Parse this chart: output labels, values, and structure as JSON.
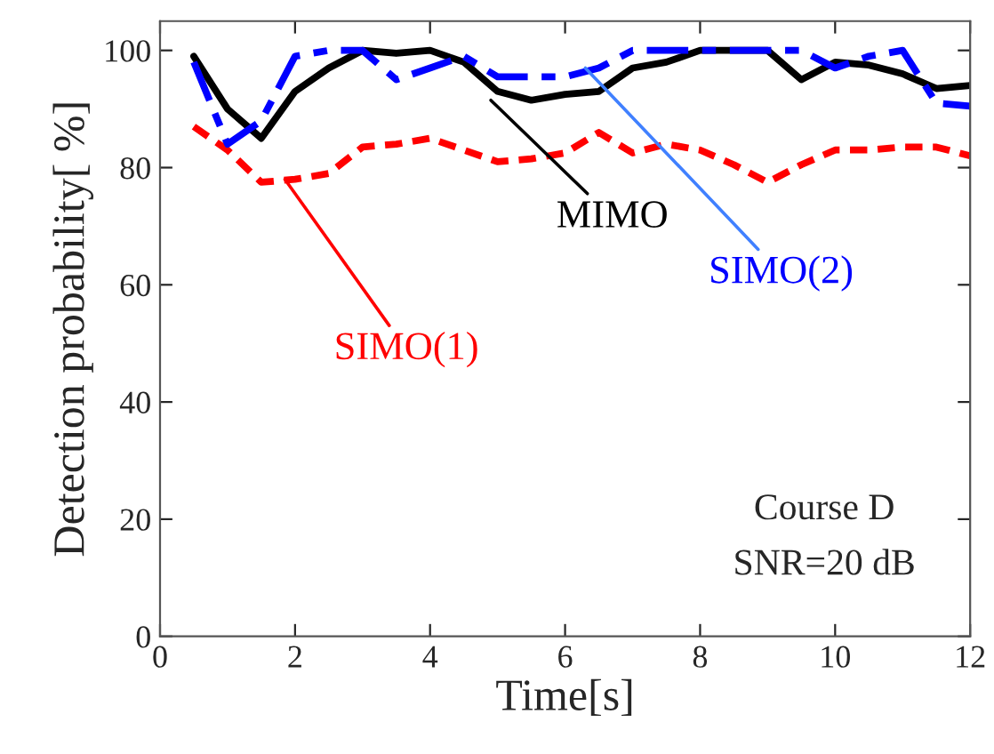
{
  "chart_data": {
    "type": "line",
    "xlabel": "Time[s]",
    "ylabel": "Detection probability[ %]",
    "x": [
      0.5,
      1,
      1.5,
      2,
      2.5,
      3,
      3.5,
      4,
      4.5,
      5,
      5.5,
      6,
      6.5,
      7,
      7.5,
      8,
      8.5,
      9,
      9.5,
      10,
      10.5,
      11,
      11.5,
      12
    ],
    "series": [
      {
        "color": "#ff0000",
        "line_style": "dotted",
        "values": [
          87,
          83,
          77.5,
          78,
          79,
          83.5,
          84,
          85,
          83,
          81,
          81.5,
          82.5,
          86,
          82.5,
          84,
          83,
          80.5,
          77.5,
          80.5,
          83,
          83,
          83.5,
          83.5,
          82
        ]
      },
      {
        "color": "#000000",
        "line_style": "solid",
        "values": [
          99,
          90,
          85,
          93,
          97,
          100,
          99.5,
          100,
          98,
          93,
          91.5,
          92.5,
          93,
          97,
          98,
          100,
          100,
          100,
          95,
          98,
          97.5,
          96,
          93.5,
          94
        ]
      },
      {
        "color": "#0000ff",
        "line_style": "dashed",
        "values": [
          98,
          84,
          88,
          99,
          100,
          100,
          95,
          97,
          99,
          95.5,
          95.5,
          95.5,
          97,
          100,
          100,
          100,
          100,
          100,
          100,
          97,
          99,
          100,
          91,
          90.5
        ]
      }
    ],
    "annotations": [
      {
        "text": "SIMO(1)",
        "x": 1.85,
        "y": 78
      },
      {
        "text": "MIMO",
        "x": 4.9,
        "y": 91.5
      },
      {
        "text": "SIMO(2)",
        "x": 6.3,
        "y": 97
      },
      "Course D",
      "SNR=20 dB"
    ],
    "xlim": [
      0,
      12
    ],
    "ylim": [
      0,
      105
    ],
    "xticks": [
      0,
      2,
      4,
      6,
      8,
      10,
      12
    ],
    "yticks": [
      0,
      20,
      40,
      60,
      80,
      100
    ],
    "grid": false,
    "legend": false,
    "marker": "none"
  }
}
